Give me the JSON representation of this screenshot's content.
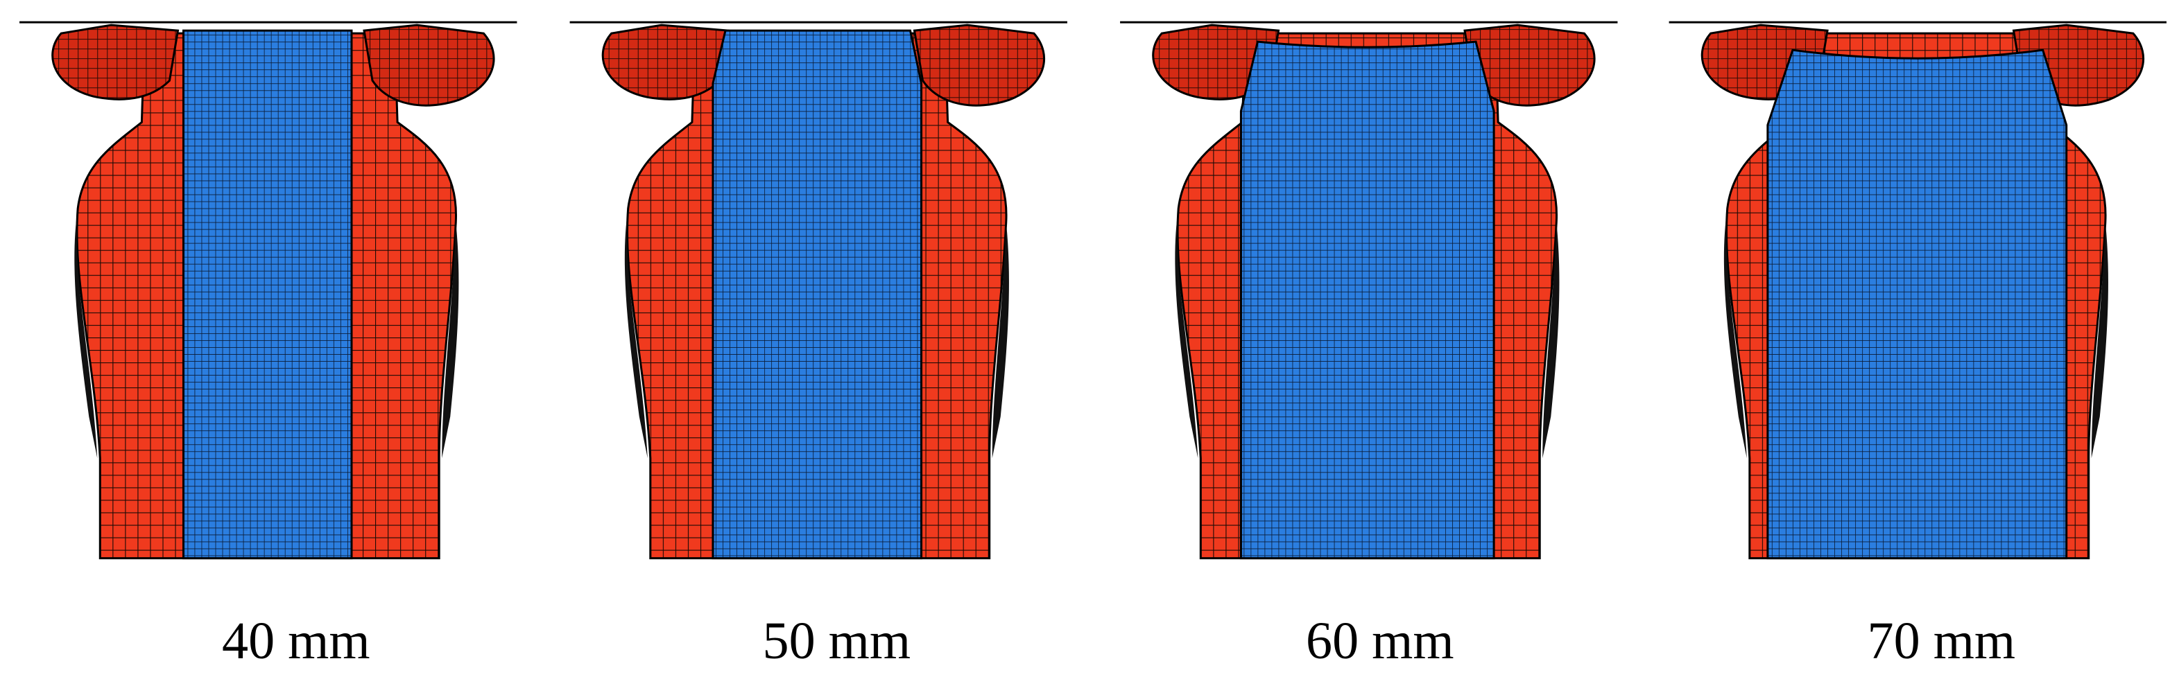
{
  "panels": [
    {
      "label": "40 mm"
    },
    {
      "label": "50 mm"
    },
    {
      "label": "60 mm"
    },
    {
      "label": "70 mm"
    }
  ]
}
